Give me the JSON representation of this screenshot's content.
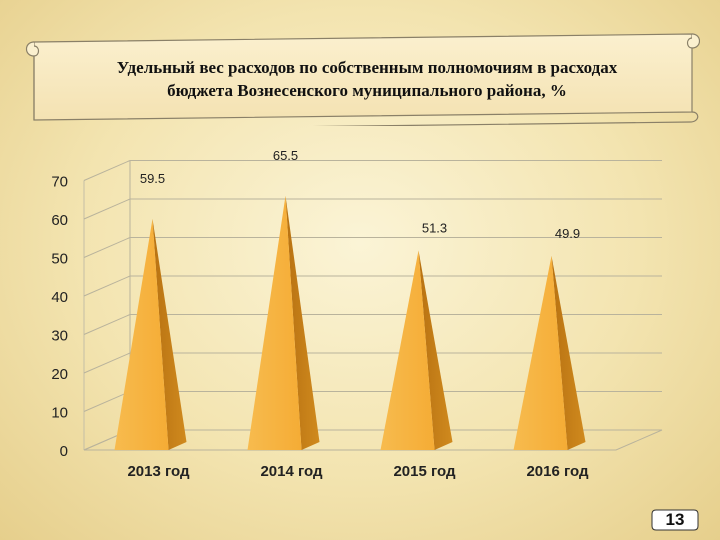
{
  "title_line1": "Удельный вес расходов по собственным полномочиям в расходах",
  "title_line2": "бюджета Вознесенского муниципального района, %",
  "page_number": "13",
  "colors": {
    "pyramid_light": "#f7b84a",
    "pyramid_dark": "#c47d12",
    "background": "#f6ebc4",
    "grid": "#b9b39c"
  },
  "chart_data": {
    "type": "bar",
    "shape": "pyramid-3d",
    "categories": [
      "2013 год",
      "2014 год",
      "2015 год",
      "2016 год"
    ],
    "values": [
      59.5,
      65.5,
      51.3,
      49.9
    ],
    "data_labels": [
      "59.5",
      "65.5",
      "51.3",
      "49.9"
    ],
    "y_ticks": [
      "0",
      "10",
      "20",
      "30",
      "40",
      "50",
      "60",
      "70"
    ],
    "ylim": [
      0,
      70
    ],
    "grid": true,
    "xlabel": "",
    "ylabel": ""
  }
}
